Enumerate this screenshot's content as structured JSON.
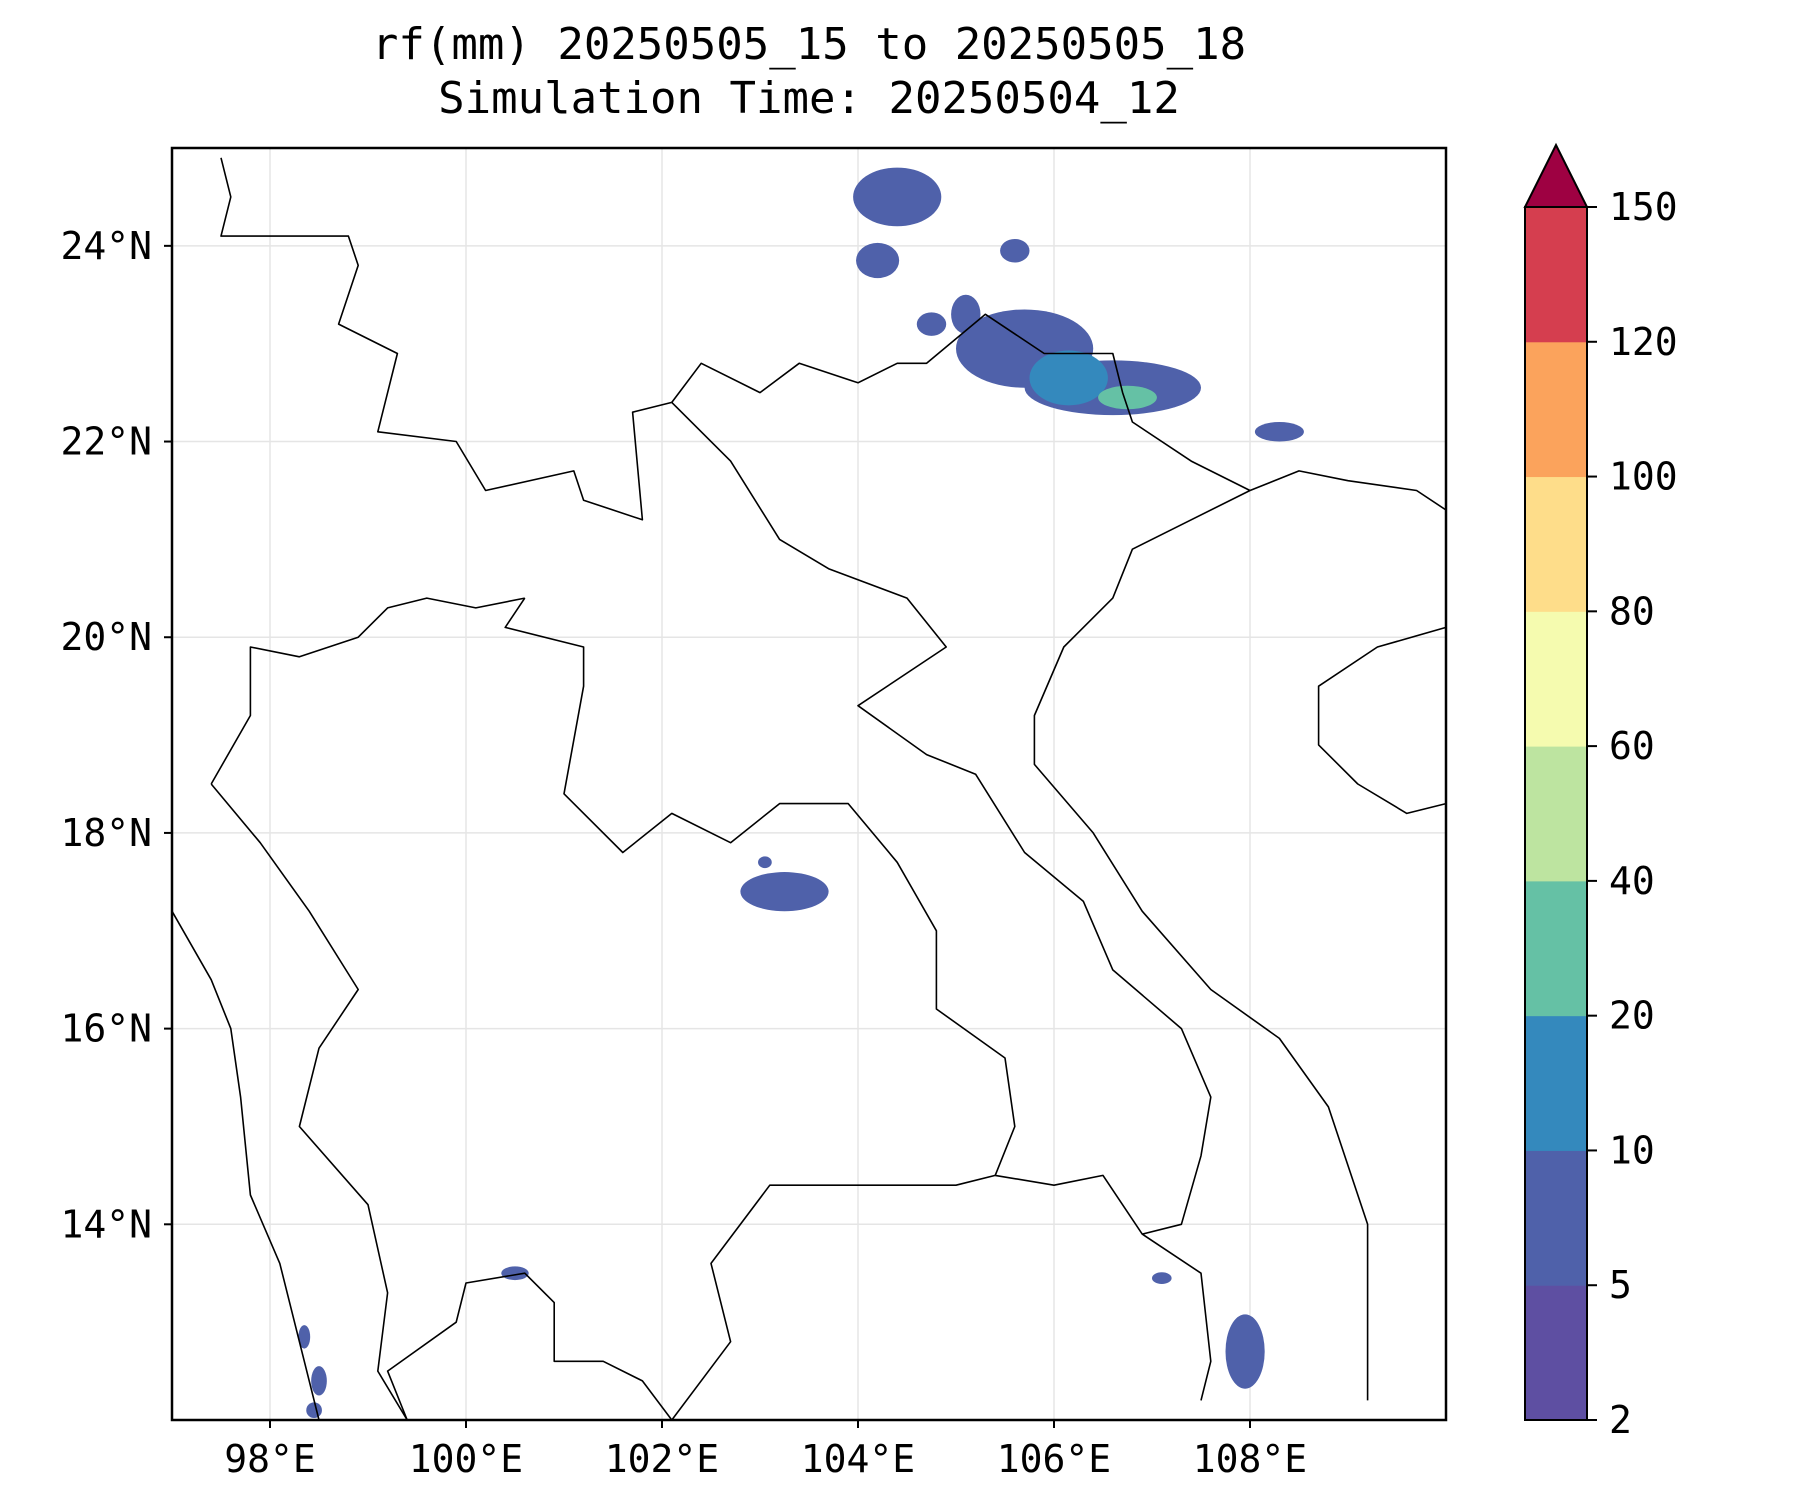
{
  "title": {
    "line1": "rf(mm) 20250505_15 to 20250505_18",
    "line2": "Simulation Time: 20250504_12"
  },
  "map": {
    "lon_range": [
      97.0,
      110.0
    ],
    "lat_range": [
      12.0,
      25.0
    ],
    "grid": true,
    "lon_ticks": [
      {
        "value": 98,
        "label": "98°E"
      },
      {
        "value": 100,
        "label": "100°E"
      },
      {
        "value": 102,
        "label": "102°E"
      },
      {
        "value": 104,
        "label": "104°E"
      },
      {
        "value": 106,
        "label": "106°E"
      },
      {
        "value": 108,
        "label": "108°E"
      }
    ],
    "lat_ticks": [
      {
        "value": 14,
        "label": "14°N"
      },
      {
        "value": 16,
        "label": "16°N"
      },
      {
        "value": 18,
        "label": "18°N"
      },
      {
        "value": 20,
        "label": "20°N"
      },
      {
        "value": 22,
        "label": "22°N"
      },
      {
        "value": 24,
        "label": "24°N"
      }
    ],
    "rain_cells": [
      {
        "lon": 104.4,
        "lat": 24.5,
        "rx": 0.45,
        "ry": 0.3,
        "level": 5
      },
      {
        "lon": 105.6,
        "lat": 23.95,
        "rx": 0.15,
        "ry": 0.12,
        "level": 5
      },
      {
        "lon": 104.2,
        "lat": 23.85,
        "rx": 0.22,
        "ry": 0.18,
        "level": 5
      },
      {
        "lon": 104.75,
        "lat": 23.2,
        "rx": 0.15,
        "ry": 0.12,
        "level": 5
      },
      {
        "lon": 105.1,
        "lat": 23.3,
        "rx": 0.15,
        "ry": 0.2,
        "level": 5
      },
      {
        "lon": 105.7,
        "lat": 22.95,
        "rx": 0.7,
        "ry": 0.4,
        "level": 5
      },
      {
        "lon": 106.6,
        "lat": 22.55,
        "rx": 0.9,
        "ry": 0.28,
        "level": 5
      },
      {
        "lon": 106.15,
        "lat": 22.65,
        "rx": 0.4,
        "ry": 0.28,
        "level": 10
      },
      {
        "lon": 106.75,
        "lat": 22.45,
        "rx": 0.3,
        "ry": 0.12,
        "level": 20
      },
      {
        "lon": 108.3,
        "lat": 22.1,
        "rx": 0.25,
        "ry": 0.1,
        "level": 5
      },
      {
        "lon": 103.25,
        "lat": 17.4,
        "rx": 0.45,
        "ry": 0.2,
        "level": 5
      },
      {
        "lon": 103.05,
        "lat": 17.7,
        "rx": 0.07,
        "ry": 0.06,
        "level": 5
      },
      {
        "lon": 107.95,
        "lat": 12.7,
        "rx": 0.2,
        "ry": 0.38,
        "level": 5
      },
      {
        "lon": 100.5,
        "lat": 13.5,
        "rx": 0.14,
        "ry": 0.07,
        "level": 5
      },
      {
        "lon": 98.5,
        "lat": 12.4,
        "rx": 0.08,
        "ry": 0.15,
        "level": 5
      },
      {
        "lon": 98.35,
        "lat": 12.85,
        "rx": 0.06,
        "ry": 0.12,
        "level": 5
      },
      {
        "lon": 98.45,
        "lat": 12.1,
        "rx": 0.08,
        "ry": 0.08,
        "level": 5
      },
      {
        "lon": 107.1,
        "lat": 13.45,
        "rx": 0.1,
        "ry": 0.06,
        "level": 5
      }
    ],
    "colors": {
      "ocean": "#ffffff",
      "border": "#000000",
      "grid": "#e5e5e5"
    }
  },
  "colorbar": {
    "levels": [
      "2",
      "5",
      "10",
      "20",
      "40",
      "60",
      "80",
      "100",
      "120",
      "150"
    ],
    "colors": [
      "#5e4fa2",
      "#4f61aa",
      "#3489bd",
      "#65c1a5",
      "#bde4a0",
      "#f5fbaf",
      "#fedd8a",
      "#fba35c",
      "#d53e4f"
    ],
    "extend_color": "#9e0142"
  }
}
